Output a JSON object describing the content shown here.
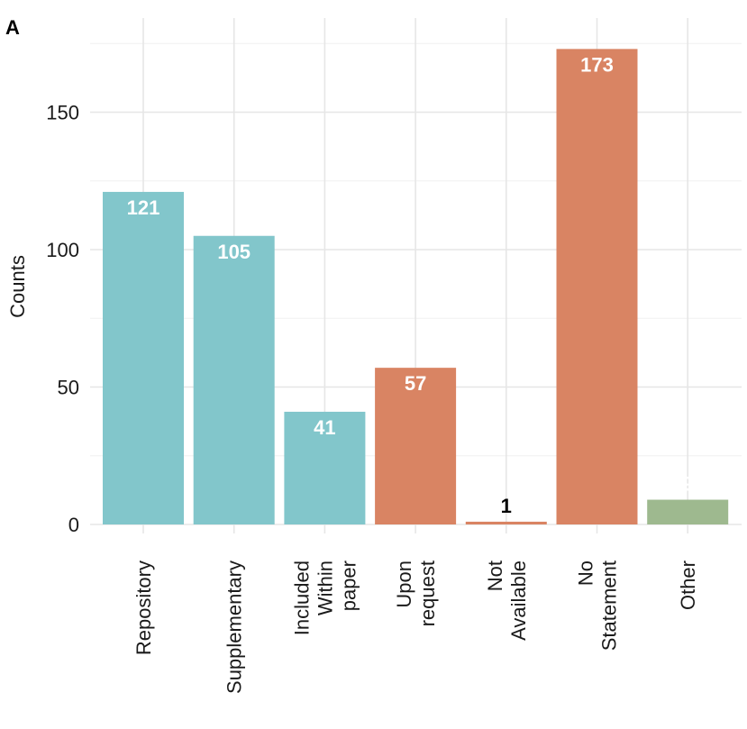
{
  "panel_label": "A",
  "chart_data": {
    "type": "bar",
    "categories": [
      [
        "Repository"
      ],
      [
        "Supplementary"
      ],
      [
        "Included",
        "Within",
        "paper"
      ],
      [
        "Upon",
        "request"
      ],
      [
        "Not",
        "Available"
      ],
      [
        "No",
        "Statement"
      ],
      [
        "Other"
      ]
    ],
    "values": [
      121,
      105,
      41,
      57,
      1,
      173,
      9
    ],
    "value_labels": [
      "121",
      "105",
      "41",
      "57",
      "1",
      "173",
      "9"
    ],
    "bar_colors": [
      "#82c6cb",
      "#82c6cb",
      "#82c6cb",
      "#d98463",
      "#d98463",
      "#d98463",
      "#9eb98f"
    ],
    "label_colors": [
      "#ffffff",
      "#ffffff",
      "#ffffff",
      "#ffffff",
      "#000000",
      "#ffffff",
      "#ffffff"
    ],
    "title": "",
    "xlabel": "",
    "ylabel": "Counts",
    "yticks": [
      0,
      50,
      100,
      150
    ],
    "ytick_labels": [
      "0",
      "50",
      "100",
      "150"
    ],
    "ylim": [
      0,
      180
    ],
    "grid": true,
    "legend": "none"
  }
}
